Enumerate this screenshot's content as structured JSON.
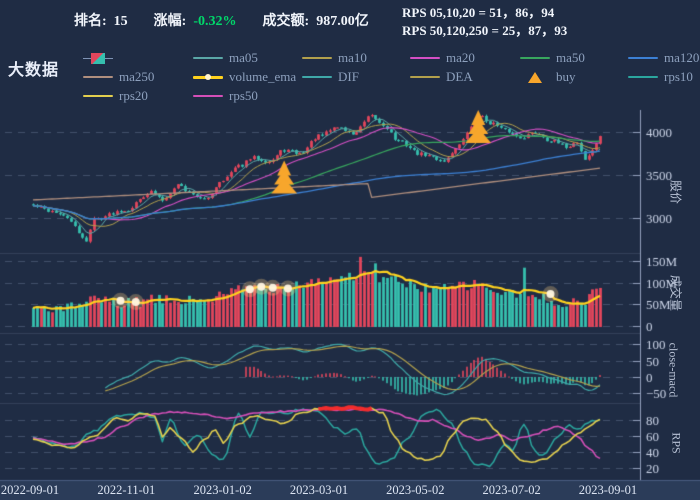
{
  "title": "大数据",
  "header": {
    "rank_label": "排名:",
    "rank_value": "15",
    "change_label": "涨幅:",
    "change_value": "-0.32%",
    "turnover_label": "成交额:",
    "turnover_value": "987.00亿",
    "rps_line1": "RPS 05,10,20 = 51，86，94",
    "rps_line2": "RPS 50,120,250 = 25，87，93"
  },
  "legend": {
    "rows": [
      [
        {
          "icon": "candle",
          "label": ""
        },
        {
          "icon": "line",
          "color": "ma05",
          "label": "ma05"
        },
        {
          "icon": "line",
          "color": "ma10",
          "label": "ma10"
        },
        {
          "icon": "line",
          "color": "ma20",
          "label": "ma20"
        },
        {
          "icon": "line",
          "color": "ma50",
          "label": "ma50"
        },
        {
          "icon": "line",
          "color": "ma120",
          "label": "ma120"
        }
      ],
      [
        {
          "icon": "line",
          "color": "ma250",
          "label": "ma250"
        },
        {
          "icon": "ema",
          "color": "ema",
          "label": "volume_ema"
        },
        {
          "icon": "line",
          "color": "dif",
          "label": "DIF"
        },
        {
          "icon": "line",
          "color": "dea",
          "label": "DEA"
        },
        {
          "icon": "buy",
          "color": "buy",
          "label": "buy"
        },
        {
          "icon": "line",
          "color": "rps10",
          "label": "rps10"
        }
      ],
      [
        {
          "icon": "line",
          "color": "rps20",
          "label": "rps20"
        },
        {
          "icon": "line",
          "color": "rps50",
          "label": "rps50"
        }
      ]
    ]
  },
  "panels": [
    {
      "ylabel": "股价",
      "ticks": [
        {
          "v": 4000,
          "t": "4000"
        },
        {
          "v": 3500,
          "t": "3500"
        },
        {
          "v": 3000,
          "t": "3000"
        }
      ]
    },
    {
      "ylabel": "成交量",
      "ticks": [
        {
          "v": 150,
          "t": "150M"
        },
        {
          "v": 100,
          "t": "100M"
        },
        {
          "v": 50,
          "t": "50M"
        },
        {
          "v": 0,
          "t": "0"
        }
      ]
    },
    {
      "ylabel": "close-macd",
      "ticks": [
        {
          "v": 100,
          "t": "100"
        },
        {
          "v": 50,
          "t": "50"
        },
        {
          "v": 0,
          "t": "0"
        },
        {
          "v": -50,
          "t": "−50"
        }
      ]
    },
    {
      "ylabel": "RPS",
      "ticks": [
        {
          "v": 80,
          "t": "80"
        },
        {
          "v": 60,
          "t": "60"
        },
        {
          "v": 40,
          "t": "40"
        },
        {
          "v": 20,
          "t": "20"
        }
      ]
    }
  ],
  "xaxis": {
    "labels": [
      "2022-09-01",
      "2022-11-01",
      "2023-01-02",
      "2023-03-01",
      "2023-05-02",
      "2023-07-02",
      "2023-09-01"
    ]
  },
  "chart_data": {
    "type": "financial-multi-panel",
    "description": "Daily candlestick chart with moving averages and buy markers (panel 1), volume bars with volume EMA and signal dots (panel 2), MACD DIF/DEA lines with histogram (panel 3), RPS 10/20/50 lines with red highlight segment (panel 4). X range 2022-09-01 to 2023-09-01.",
    "points": 150,
    "price": {
      "ylim": [
        2700,
        4260
      ],
      "anchors": [
        [
          0,
          3140
        ],
        [
          5,
          3080
        ],
        [
          9,
          3000
        ],
        [
          13,
          2780
        ],
        [
          14,
          2740
        ],
        [
          16,
          2990
        ],
        [
          24,
          3090
        ],
        [
          31,
          3300
        ],
        [
          34,
          3210
        ],
        [
          38,
          3390
        ],
        [
          41,
          3300
        ],
        [
          45,
          3210
        ],
        [
          50,
          3450
        ],
        [
          54,
          3600
        ],
        [
          58,
          3700
        ],
        [
          62,
          3660
        ],
        [
          66,
          3790
        ],
        [
          70,
          3750
        ],
        [
          75,
          3950
        ],
        [
          80,
          4060
        ],
        [
          84,
          3980
        ],
        [
          89,
          4180
        ],
        [
          92,
          4080
        ],
        [
          96,
          3890
        ],
        [
          102,
          3740
        ],
        [
          108,
          3670
        ],
        [
          112,
          3850
        ],
        [
          115,
          4050
        ],
        [
          117,
          4190
        ],
        [
          120,
          4110
        ],
        [
          124,
          4020
        ],
        [
          128,
          3940
        ],
        [
          132,
          3990
        ],
        [
          136,
          3900
        ],
        [
          140,
          3830
        ],
        [
          143,
          3880
        ],
        [
          145,
          3680
        ],
        [
          147,
          3780
        ],
        [
          149,
          3960
        ]
      ],
      "ma250_anchors": [
        [
          0,
          3210
        ],
        [
          88,
          3400
        ],
        [
          89,
          3240
        ],
        [
          149,
          3580
        ]
      ]
    },
    "buy_signals": [
      {
        "i": 66,
        "apex": 3670
      },
      {
        "i": 117,
        "apex": 4255
      }
    ],
    "volume": {
      "unit": "M shares",
      "ylim": [
        0,
        160
      ],
      "anchors": [
        [
          0,
          44
        ],
        [
          8,
          40
        ],
        [
          14,
          52
        ],
        [
          16,
          60
        ],
        [
          24,
          52
        ],
        [
          32,
          60
        ],
        [
          40,
          58
        ],
        [
          45,
          62
        ],
        [
          50,
          70
        ],
        [
          54,
          85
        ],
        [
          58,
          92
        ],
        [
          62,
          88
        ],
        [
          66,
          95
        ],
        [
          70,
          100
        ],
        [
          75,
          105
        ],
        [
          80,
          112
        ],
        [
          86,
          118
        ],
        [
          90,
          110
        ],
        [
          94,
          108
        ],
        [
          100,
          95
        ],
        [
          104,
          88
        ],
        [
          108,
          85
        ],
        [
          112,
          92
        ],
        [
          117,
          96
        ],
        [
          120,
          85
        ],
        [
          124,
          75
        ],
        [
          128,
          72
        ],
        [
          132,
          65
        ],
        [
          136,
          60
        ],
        [
          140,
          55
        ],
        [
          143,
          58
        ],
        [
          145,
          52
        ],
        [
          148,
          88
        ],
        [
          149,
          92
        ]
      ],
      "spikes": [
        [
          86,
          160
        ],
        [
          90,
          145
        ],
        [
          129,
          135
        ]
      ],
      "ema_window": 8,
      "dots": [
        23,
        27,
        57,
        60,
        63,
        67,
        136
      ]
    },
    "macd": {
      "ylim": [
        -90,
        120
      ],
      "lines_start_index": 19,
      "hist_start_index": 56
    },
    "rps": {
      "ylim": [
        15,
        96
      ],
      "rps10": [
        [
          0,
          58
        ],
        [
          6,
          50
        ],
        [
          10,
          46
        ],
        [
          16,
          66
        ],
        [
          22,
          86
        ],
        [
          28,
          88
        ],
        [
          32,
          84
        ],
        [
          34,
          52
        ],
        [
          36,
          80
        ],
        [
          40,
          48
        ],
        [
          43,
          62
        ],
        [
          47,
          38
        ],
        [
          50,
          30
        ],
        [
          54,
          88
        ],
        [
          57,
          60
        ],
        [
          60,
          90
        ],
        [
          66,
          88
        ],
        [
          70,
          93
        ],
        [
          75,
          90
        ],
        [
          80,
          70
        ],
        [
          82,
          62
        ],
        [
          85,
          70
        ],
        [
          88,
          40
        ],
        [
          90,
          25
        ],
        [
          94,
          30
        ],
        [
          98,
          55
        ],
        [
          103,
          88
        ],
        [
          106,
          93
        ],
        [
          110,
          75
        ],
        [
          113,
          45
        ],
        [
          116,
          25
        ],
        [
          120,
          22
        ],
        [
          124,
          50
        ],
        [
          126,
          42
        ],
        [
          129,
          75
        ],
        [
          132,
          40
        ],
        [
          134,
          35
        ],
        [
          138,
          60
        ],
        [
          141,
          75
        ],
        [
          143,
          68
        ],
        [
          146,
          78
        ],
        [
          149,
          80
        ]
      ],
      "rps20": [
        [
          0,
          56
        ],
        [
          6,
          48
        ],
        [
          10,
          45
        ],
        [
          16,
          60
        ],
        [
          22,
          82
        ],
        [
          25,
          78
        ],
        [
          28,
          88
        ],
        [
          32,
          86
        ],
        [
          34,
          60
        ],
        [
          36,
          70
        ],
        [
          39,
          58
        ],
        [
          42,
          40
        ],
        [
          45,
          55
        ],
        [
          48,
          68
        ],
        [
          50,
          52
        ],
        [
          54,
          75
        ],
        [
          58,
          85
        ],
        [
          62,
          80
        ],
        [
          66,
          75
        ],
        [
          70,
          88
        ],
        [
          75,
          94
        ],
        [
          82,
          95
        ],
        [
          89,
          94
        ],
        [
          92,
          88
        ],
        [
          95,
          60
        ],
        [
          98,
          40
        ],
        [
          101,
          32
        ],
        [
          104,
          30
        ],
        [
          107,
          35
        ],
        [
          110,
          60
        ],
        [
          113,
          78
        ],
        [
          116,
          83
        ],
        [
          119,
          80
        ],
        [
          122,
          65
        ],
        [
          125,
          45
        ],
        [
          128,
          30
        ],
        [
          131,
          27
        ],
        [
          134,
          30
        ],
        [
          137,
          38
        ],
        [
          140,
          52
        ],
        [
          143,
          62
        ],
        [
          146,
          72
        ],
        [
          149,
          80
        ]
      ],
      "rps50": [
        [
          0,
          57
        ],
        [
          5,
          53
        ],
        [
          9,
          50
        ],
        [
          14,
          52
        ],
        [
          18,
          58
        ],
        [
          24,
          72
        ],
        [
          28,
          82
        ],
        [
          32,
          88
        ],
        [
          36,
          90
        ],
        [
          42,
          89
        ],
        [
          46,
          86
        ],
        [
          50,
          82
        ],
        [
          54,
          84
        ],
        [
          58,
          88
        ],
        [
          62,
          90
        ],
        [
          68,
          91
        ],
        [
          75,
          93
        ],
        [
          82,
          93
        ],
        [
          89,
          93
        ],
        [
          93,
          92
        ],
        [
          96,
          88
        ],
        [
          99,
          82
        ],
        [
          102,
          78
        ],
        [
          105,
          80
        ],
        [
          108,
          74
        ],
        [
          111,
          68
        ],
        [
          114,
          60
        ],
        [
          117,
          55
        ],
        [
          120,
          58
        ],
        [
          123,
          62
        ],
        [
          126,
          55
        ],
        [
          129,
          58
        ],
        [
          132,
          62
        ],
        [
          135,
          68
        ],
        [
          138,
          72
        ],
        [
          140,
          68
        ],
        [
          143,
          60
        ],
        [
          146,
          45
        ],
        [
          149,
          32
        ]
      ],
      "highlight": [
        75,
        89
      ]
    },
    "colors": {
      "up": "#e2465c",
      "down": "#36bfae",
      "ma05": "#5aa7a7",
      "ma10": "#b2a04c",
      "ma20": "#d44fc4",
      "ma50": "#38a75e",
      "ma120": "#3c80d4",
      "ma250": "#b08f7e",
      "ema": "#ffd21e",
      "dif": "#3fa8a8",
      "dea": "#b2a04c",
      "buy": "#f7a62c",
      "rps10": "#2ba69e",
      "rps20": "#e3cf4e",
      "rps50": "#d44fb8",
      "highlight": "#f22c2c",
      "background": "#1f2c44",
      "axis_strip": "#2b3c59",
      "positive_green": "#00d96a"
    }
  }
}
